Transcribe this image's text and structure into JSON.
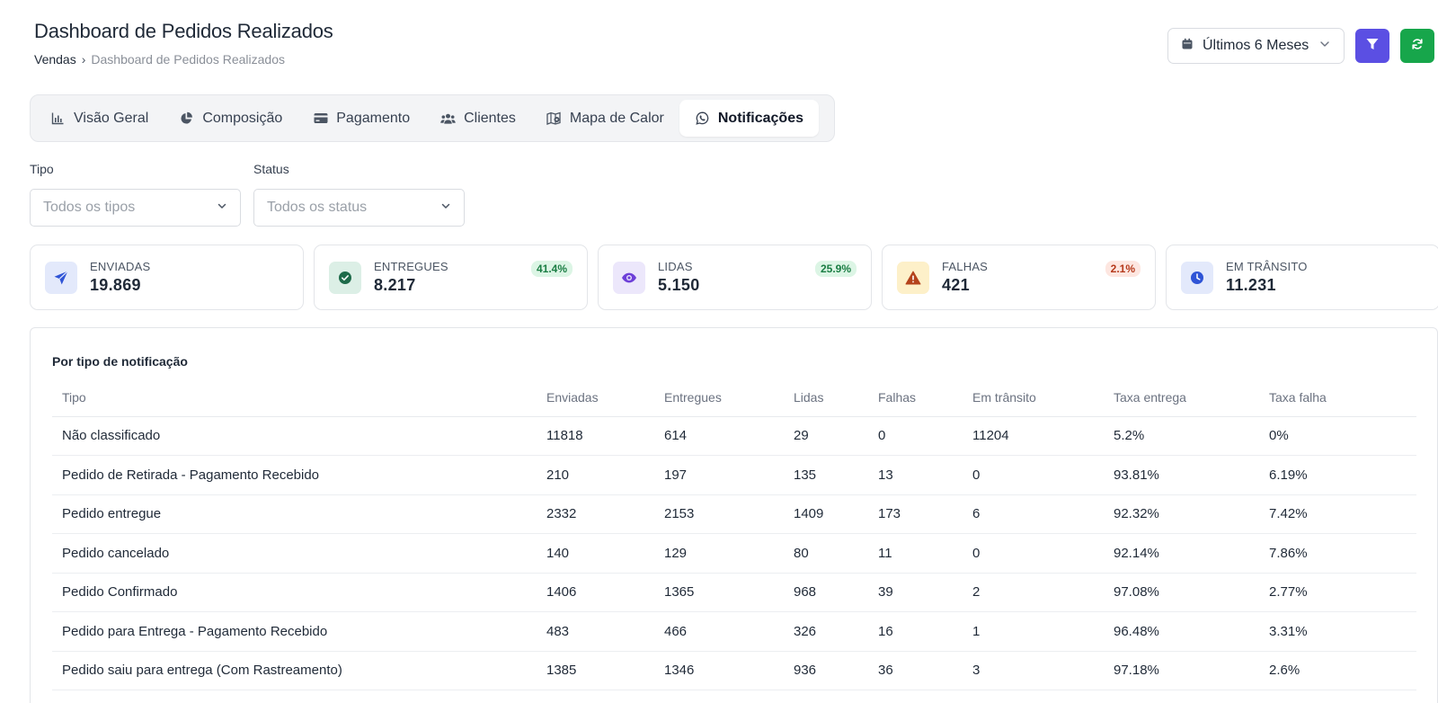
{
  "header": {
    "title": "Dashboard de Pedidos Realizados",
    "breadcrumb_root": "Vendas",
    "breadcrumb_sep": "›",
    "breadcrumb_current": "Dashboard de Pedidos Realizados"
  },
  "actions": {
    "period_label": "Últimos 6 Meses",
    "filter_icon": "filter-icon",
    "refresh_icon": "refresh-icon",
    "filter_color": "#5b4fe3",
    "refresh_color": "#17a64b"
  },
  "tabs": [
    {
      "label": "Visão Geral",
      "icon": "bar-chart-icon",
      "active": false
    },
    {
      "label": "Composição",
      "icon": "pie-chart-icon",
      "active": false
    },
    {
      "label": "Pagamento",
      "icon": "credit-card-icon",
      "active": false
    },
    {
      "label": "Clientes",
      "icon": "users-icon",
      "active": false
    },
    {
      "label": "Mapa de Calor",
      "icon": "map-pin-icon",
      "active": false
    },
    {
      "label": "Notificações",
      "icon": "whatsapp-icon",
      "active": true
    }
  ],
  "filters": {
    "tipo": {
      "label": "Tipo",
      "value": "Todos os tipos"
    },
    "status": {
      "label": "Status",
      "value": "Todos os status"
    }
  },
  "stats": [
    {
      "label": "ENVIADAS",
      "value": "19.869",
      "badge": "",
      "icon": "send-icon",
      "icon_bg": "#e3e9fb",
      "icon_color": "#2f54d6"
    },
    {
      "label": "ENTREGUES",
      "value": "8.217",
      "badge": "41.4%",
      "icon": "check-circle-icon",
      "icon_bg": "#dcefe6",
      "icon_color": "#1e6b4a"
    },
    {
      "label": "LIDAS",
      "value": "5.150",
      "badge": "25.9%",
      "icon": "eye-icon",
      "icon_bg": "#ece7fb",
      "icon_color": "#6d3fd8"
    },
    {
      "label": "FALHAS",
      "value": "421",
      "badge": "2.1%",
      "icon": "warning-icon",
      "icon_bg": "#fdf0c9",
      "icon_color": "#b4431c"
    },
    {
      "label": "EM TRÂNSITO",
      "value": "11.231",
      "badge": "",
      "icon": "clock-icon",
      "icon_bg": "#e3e9fb",
      "icon_color": "#2f54d6"
    }
  ],
  "table": {
    "title": "Por tipo de notificação",
    "columns": [
      "Tipo",
      "Enviadas",
      "Entregues",
      "Lidas",
      "Falhas",
      "Em trânsito",
      "Taxa entrega",
      "Taxa falha"
    ],
    "rows": [
      [
        "Não classificado",
        "11818",
        "614",
        "29",
        "0",
        "11204",
        "5.2%",
        "0%"
      ],
      [
        "Pedido de Retirada - Pagamento Recebido",
        "210",
        "197",
        "135",
        "13",
        "0",
        "93.81%",
        "6.19%"
      ],
      [
        "Pedido entregue",
        "2332",
        "2153",
        "1409",
        "173",
        "6",
        "92.32%",
        "7.42%"
      ],
      [
        "Pedido cancelado",
        "140",
        "129",
        "80",
        "11",
        "0",
        "92.14%",
        "7.86%"
      ],
      [
        "Pedido Confirmado",
        "1406",
        "1365",
        "968",
        "39",
        "2",
        "97.08%",
        "2.77%"
      ],
      [
        "Pedido para Entrega - Pagamento Recebido",
        "483",
        "466",
        "326",
        "16",
        "1",
        "96.48%",
        "3.31%"
      ],
      [
        "Pedido saiu para entrega (Com Rastreamento)",
        "1385",
        "1346",
        "936",
        "36",
        "3",
        "97.18%",
        "2.6%"
      ]
    ]
  }
}
